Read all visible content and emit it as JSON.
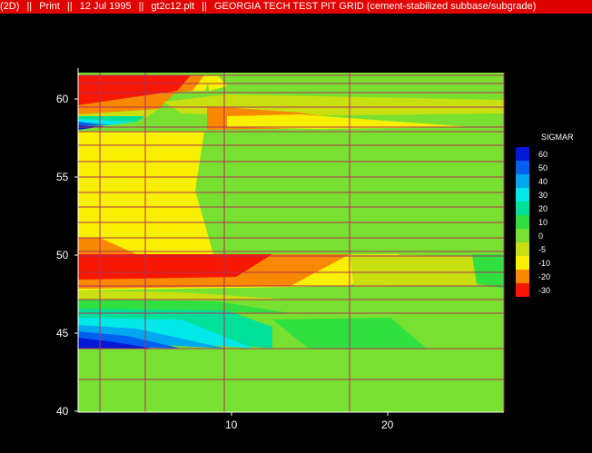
{
  "titlebar": {
    "segments": [
      "(2D)",
      "Print",
      "12 Jul 1995",
      "gt2c12.plt",
      "GEORGIA TECH TEST PIT GRID (cement-stabilized subbase/subgrade)"
    ],
    "separator": "||",
    "color": "#e00000"
  },
  "plot": {
    "background": "#000000",
    "grid_color": "#b0305a",
    "x_ticks": [
      "10",
      "20"
    ],
    "y_ticks": [
      "40",
      "45",
      "50",
      "55",
      "60"
    ]
  },
  "legend": {
    "title": "SIGMAR",
    "labels": [
      "60",
      "50",
      "40",
      "30",
      "20",
      "10",
      "0",
      "-5",
      "-10",
      "-20",
      "-30"
    ],
    "colors": [
      "#0018d8",
      "#0060f0",
      "#00a8f0",
      "#00e8e8",
      "#00e098",
      "#30e040",
      "#78e030",
      "#c8e010",
      "#f8f000",
      "#f88800",
      "#f81800"
    ]
  }
}
